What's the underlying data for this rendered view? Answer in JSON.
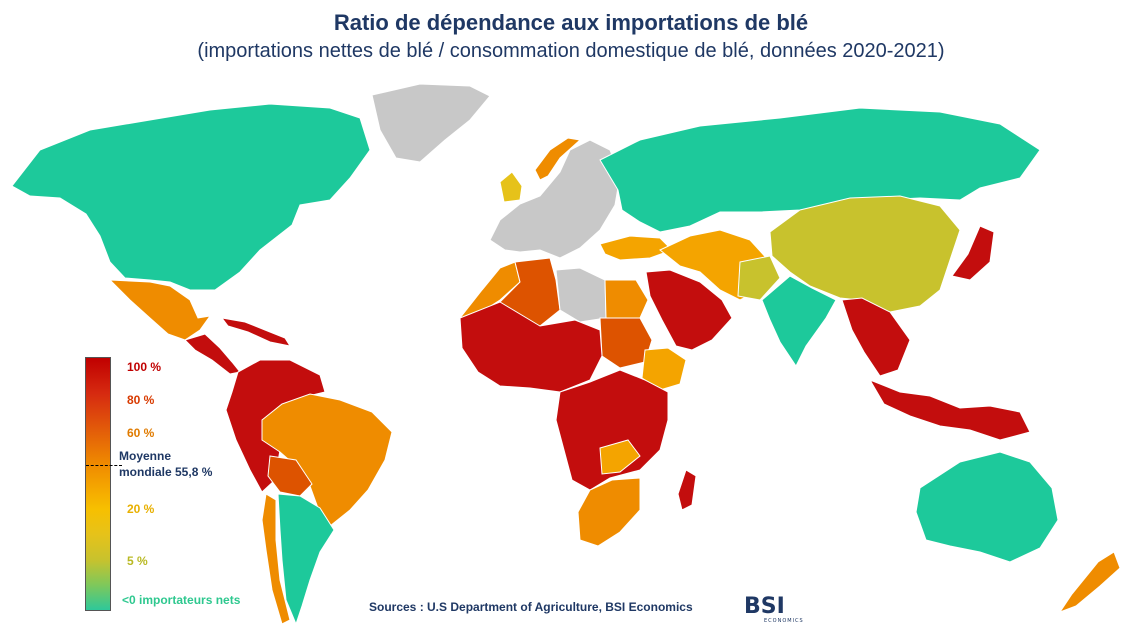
{
  "title": "Ratio de dépendance aux importations de blé",
  "subtitle": "(importations nettes de blé / consommation domestique de blé, données 2020-2021)",
  "legend": {
    "labels": [
      "100 %",
      "80 %",
      "60 %",
      "20 %",
      "5 %",
      "<0 importateurs nets"
    ],
    "label_colors": [
      "#c00000",
      "#d83a00",
      "#e07b00",
      "#e8b000",
      "#b9b923",
      "#2ec88f"
    ],
    "average_label_line1": "Moyenne",
    "average_label_line2": "mondiale 55,8 %"
  },
  "source": "Sources : U.S Department of Agriculture, BSI Economics",
  "logo": {
    "text": "BSI",
    "subtext": "ECONOMICS"
  },
  "colors": {
    "net_exporter": "#1dc99b",
    "very_high": "#c30d0d",
    "high": "#dd5300",
    "mid_high": "#ef8c00",
    "mid": "#f4a400",
    "low": "#e6c21a",
    "very_low": "#c8c22d",
    "no_data": "#c8c8c8"
  },
  "map_data": {
    "average_world_ratio_percent": 55.8,
    "regions": [
      {
        "name": "North America",
        "category": "net_exporter"
      },
      {
        "name": "Greenland",
        "category": "no_data"
      },
      {
        "name": "Mexico",
        "category": "mid_high"
      },
      {
        "name": "Central America",
        "category": "very_high"
      },
      {
        "name": "Caribbean",
        "category": "very_high"
      },
      {
        "name": "Colombia / Venezuela / Peru",
        "category": "very_high"
      },
      {
        "name": "Brazil",
        "category": "mid_high"
      },
      {
        "name": "Bolivia",
        "category": "high"
      },
      {
        "name": "Chile",
        "category": "mid_high"
      },
      {
        "name": "Argentina / Uruguay",
        "category": "net_exporter"
      },
      {
        "name": "Europe",
        "category": "no_data"
      },
      {
        "name": "United Kingdom",
        "category": "low"
      },
      {
        "name": "Norway",
        "category": "mid_high"
      },
      {
        "name": "Russia / Kazakhstan",
        "category": "net_exporter"
      },
      {
        "name": "Turkey",
        "category": "mid"
      },
      {
        "name": "Middle East / Iran",
        "category": "mid"
      },
      {
        "name": "Saudi Arabia / Arabian Peninsula",
        "category": "very_high"
      },
      {
        "name": "Morocco",
        "category": "mid_high"
      },
      {
        "name": "Algeria",
        "category": "high"
      },
      {
        "name": "Libya",
        "category": "no_data"
      },
      {
        "name": "Egypt",
        "category": "mid_high"
      },
      {
        "name": "Sudan",
        "category": "high"
      },
      {
        "name": "West Africa",
        "category": "very_high"
      },
      {
        "name": "Ethiopia",
        "category": "mid"
      },
      {
        "name": "Central Africa",
        "category": "very_high"
      },
      {
        "name": "Zambia",
        "category": "mid"
      },
      {
        "name": "Southern Africa",
        "category": "mid_high"
      },
      {
        "name": "Madagascar",
        "category": "very_high"
      },
      {
        "name": "China / Mongolia",
        "category": "very_low"
      },
      {
        "name": "India",
        "category": "net_exporter"
      },
      {
        "name": "Pakistan",
        "category": "very_low"
      },
      {
        "name": "Japan / Korea",
        "category": "very_high"
      },
      {
        "name": "Southeast Asia",
        "category": "very_high"
      },
      {
        "name": "Indonesia / Philippines",
        "category": "very_high"
      },
      {
        "name": "Australia",
        "category": "net_exporter"
      },
      {
        "name": "New Zealand",
        "category": "mid_high"
      }
    ]
  }
}
